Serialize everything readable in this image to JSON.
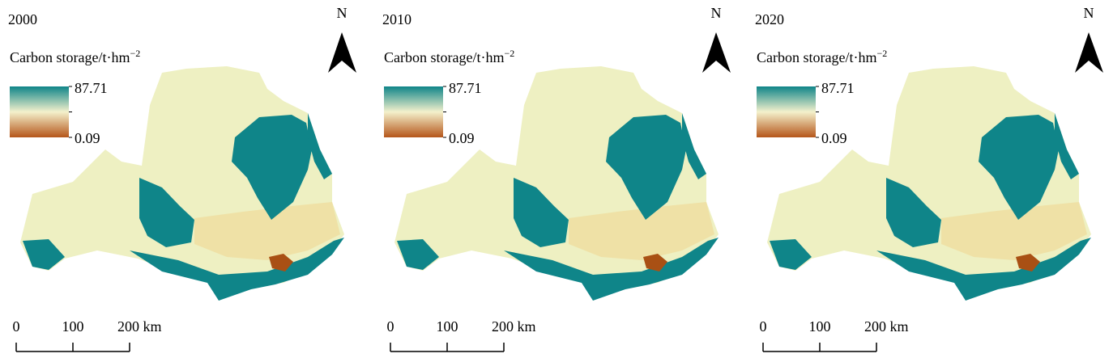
{
  "panels": [
    {
      "year": "2000"
    },
    {
      "year": "2010"
    },
    {
      "year": "2020"
    }
  ],
  "legend": {
    "title": "Carbon storage/t·hm",
    "superscript": "−2",
    "max": 87.71,
    "min": 0.09
  },
  "north": "N",
  "scale_bar": {
    "ticks": [
      0,
      100,
      {
        "value": 200,
        "label": "200 km"
      }
    ]
  }
}
